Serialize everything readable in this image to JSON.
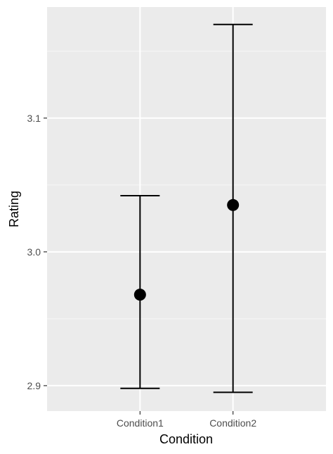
{
  "chart_data": {
    "type": "scatter",
    "xlabel": "Condition",
    "ylabel": "Rating",
    "categories": [
      "Condition1",
      "Condition2"
    ],
    "points": [
      {
        "category": "Condition1",
        "y": 2.968,
        "ymin": 2.898,
        "ymax": 3.042
      },
      {
        "category": "Condition2",
        "y": 3.035,
        "ymin": 2.895,
        "ymax": 3.17
      }
    ],
    "ylim": [
      2.881,
      3.183
    ],
    "yticks": [
      2.9,
      3.0,
      3.1
    ],
    "ytick_labels": [
      "2.9",
      "3.0",
      "3.1"
    ],
    "yminor": [
      2.95,
      3.05,
      3.15
    ],
    "grid": true,
    "panel_color": "#ebebeb",
    "grid_color": "#ffffff",
    "point_color": "#000000"
  }
}
